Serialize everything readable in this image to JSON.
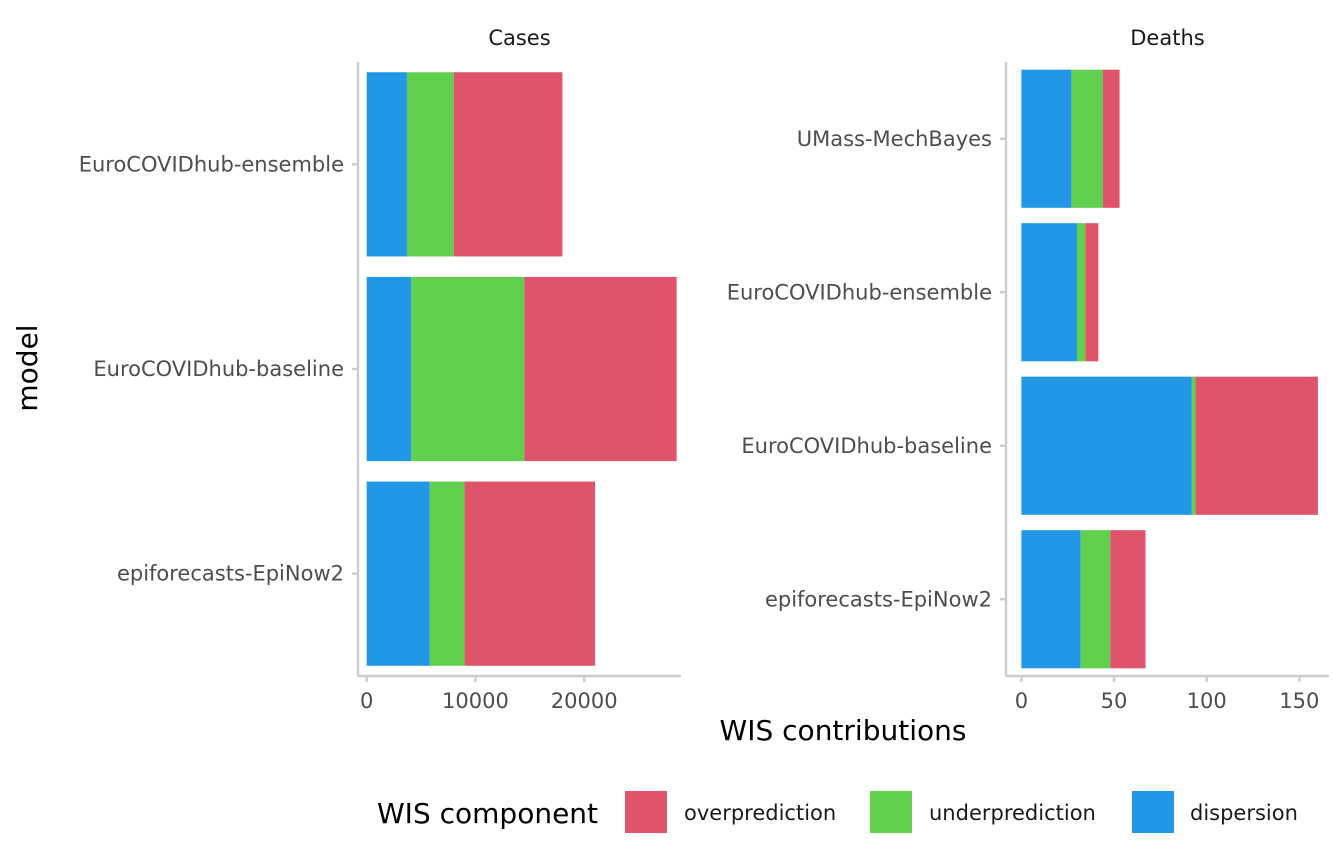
{
  "chart_data": {
    "type": "bar",
    "orientation": "horizontal",
    "stacked": true,
    "xlabel": "WIS contributions",
    "ylabel": "model",
    "grid": false,
    "legend": {
      "title": "WIS component",
      "position": "bottom",
      "entries": [
        {
          "name": "overprediction",
          "color": "#DF536B"
        },
        {
          "name": "underprediction",
          "color": "#61D04F"
        },
        {
          "name": "dispersion",
          "color": "#2297E6"
        }
      ]
    },
    "stack_order": [
      "dispersion",
      "underprediction",
      "overprediction"
    ],
    "colors": {
      "dispersion": "#2297E6",
      "underprediction": "#61D04F",
      "overprediction": "#DF536B"
    },
    "facets": [
      {
        "title": "Cases",
        "xlim": [
          -800,
          28900
        ],
        "xticks": [
          0,
          10000,
          20000
        ],
        "xtick_labels": [
          "0",
          "10000",
          "20000"
        ],
        "categories": [
          "EuroCOVIDhub-ensemble",
          "EuroCOVIDhub-baseline",
          "epiforecasts-EpiNow2"
        ],
        "series": [
          {
            "name": "dispersion",
            "values": [
              3700,
              4100,
              5800
            ]
          },
          {
            "name": "underprediction",
            "values": [
              4300,
              10400,
              3200
            ]
          },
          {
            "name": "overprediction",
            "values": [
              10000,
              14000,
              12000
            ]
          }
        ]
      },
      {
        "title": "Deaths",
        "xlim": [
          -8.3,
          166
        ],
        "xticks": [
          0,
          50,
          100,
          150
        ],
        "xtick_labels": [
          "0",
          "50",
          "100",
          "150"
        ],
        "categories": [
          "UMass-MechBayes",
          "EuroCOVIDhub-ensemble",
          "EuroCOVIDhub-baseline",
          "epiforecasts-EpiNow2"
        ],
        "series": [
          {
            "name": "dispersion",
            "values": [
              27,
              30,
              92,
              32
            ]
          },
          {
            "name": "underprediction",
            "values": [
              17,
              4.5,
              2,
              16
            ]
          },
          {
            "name": "overprediction",
            "values": [
              9,
              7,
              66,
              19
            ]
          }
        ]
      }
    ]
  }
}
